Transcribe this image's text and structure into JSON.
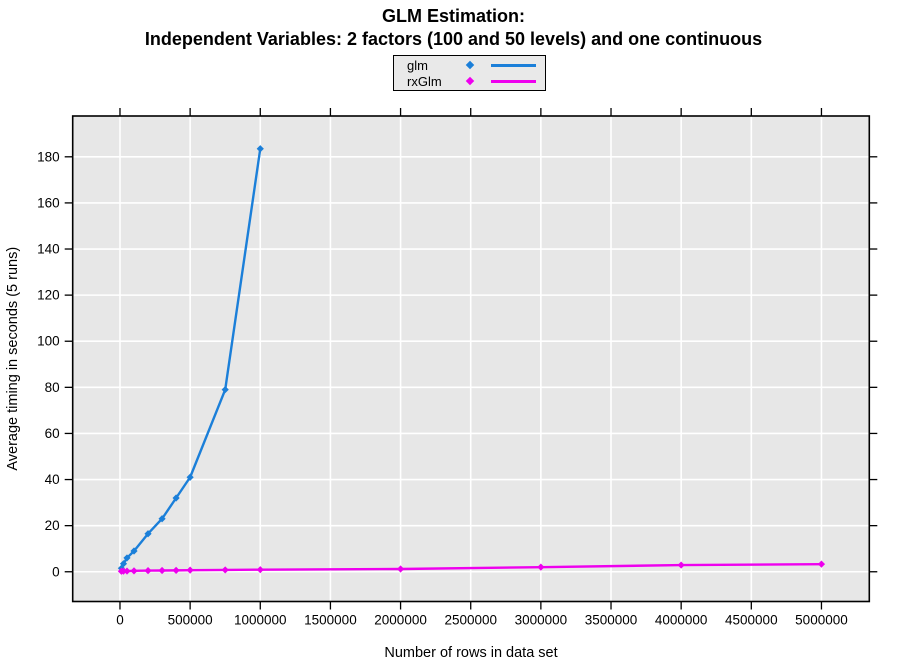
{
  "chart": {
    "title_line1": "GLM Estimation:",
    "title_line2": "Independent Variables: 2 factors (100 and 50 levels) and one continuous"
  },
  "chart_data": {
    "type": "line",
    "title": "GLM Estimation: Independent Variables: 2 factors (100 and 50 levels) and one continuous",
    "xlabel": "Number of rows in data set",
    "ylabel": "Average timing in seconds (5 runs)",
    "x_ticks": [
      0,
      500000,
      1000000,
      1500000,
      2000000,
      2500000,
      3000000,
      3500000,
      4000000,
      4500000,
      5000000
    ],
    "y_ticks": [
      0,
      20,
      40,
      60,
      80,
      100,
      120,
      140,
      160,
      180
    ],
    "xlim": [
      -337000,
      5341000
    ],
    "ylim": [
      -12.9,
      197.7
    ],
    "grid": true,
    "legend_position": "top-center",
    "background": "#FFFFFF",
    "panel_bg": "#E7E7E7",
    "grid_color": "#FFFFFF",
    "series": [
      {
        "name": "glm",
        "color": "#1B7FD9",
        "marker": "diamond",
        "points": [
          [
            10000,
            1.5
          ],
          [
            25000,
            3.5
          ],
          [
            50000,
            6
          ],
          [
            100000,
            9
          ],
          [
            200000,
            16.5
          ],
          [
            300000,
            23
          ],
          [
            400000,
            32
          ],
          [
            500000,
            41
          ],
          [
            750000,
            79
          ],
          [
            1000000,
            183.5
          ]
        ]
      },
      {
        "name": "rxGlm",
        "color": "#EE00EE",
        "marker": "diamond",
        "points": [
          [
            10000,
            0.2
          ],
          [
            25000,
            0.25
          ],
          [
            50000,
            0.3
          ],
          [
            100000,
            0.4
          ],
          [
            200000,
            0.5
          ],
          [
            300000,
            0.55
          ],
          [
            400000,
            0.6
          ],
          [
            500000,
            0.7
          ],
          [
            750000,
            0.8
          ],
          [
            1000000,
            0.9
          ],
          [
            2000000,
            1.2
          ],
          [
            3000000,
            2.0
          ],
          [
            4000000,
            2.9
          ],
          [
            5000000,
            3.3
          ]
        ]
      }
    ]
  }
}
